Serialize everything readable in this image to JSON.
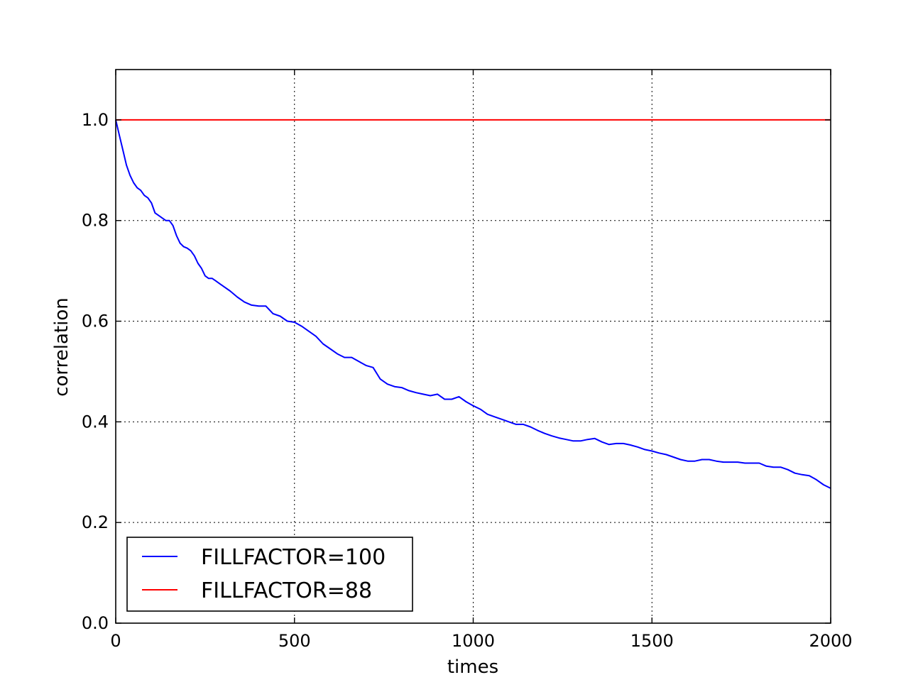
{
  "chart_data": {
    "type": "line",
    "title": "",
    "xlabel": "times",
    "ylabel": "correlation",
    "xlim": [
      0,
      2000
    ],
    "ylim": [
      0.0,
      1.1
    ],
    "xticks": [
      0,
      500,
      1000,
      1500,
      2000
    ],
    "xtick_labels": [
      "0",
      "500",
      "1000",
      "1500",
      "2000"
    ],
    "yticks": [
      0.0,
      0.2,
      0.4,
      0.6,
      0.8,
      1.0
    ],
    "ytick_labels": [
      "0.0",
      "0.2",
      "0.4",
      "0.6",
      "0.8",
      "1.0"
    ],
    "grid": true,
    "legend_position": "lower-left",
    "series": [
      {
        "name": "FILLFACTOR=100",
        "color": "#0000ff",
        "x": [
          0,
          10,
          20,
          30,
          40,
          50,
          60,
          70,
          80,
          90,
          100,
          110,
          120,
          130,
          140,
          150,
          160,
          170,
          180,
          190,
          200,
          210,
          220,
          230,
          240,
          250,
          260,
          270,
          280,
          290,
          300,
          320,
          340,
          360,
          380,
          400,
          420,
          440,
          460,
          480,
          500,
          520,
          540,
          560,
          580,
          600,
          620,
          640,
          660,
          680,
          700,
          720,
          740,
          760,
          780,
          800,
          820,
          840,
          860,
          880,
          900,
          920,
          940,
          960,
          980,
          1000,
          1020,
          1040,
          1060,
          1080,
          1100,
          1120,
          1140,
          1160,
          1180,
          1200,
          1220,
          1240,
          1260,
          1280,
          1300,
          1320,
          1340,
          1360,
          1380,
          1400,
          1420,
          1440,
          1460,
          1480,
          1500,
          1520,
          1540,
          1560,
          1580,
          1600,
          1620,
          1640,
          1660,
          1680,
          1700,
          1720,
          1740,
          1760,
          1780,
          1800,
          1820,
          1840,
          1860,
          1880,
          1900,
          1920,
          1940,
          1960,
          1980,
          2000
        ],
        "y": [
          1.0,
          0.97,
          0.94,
          0.91,
          0.89,
          0.875,
          0.865,
          0.86,
          0.85,
          0.845,
          0.835,
          0.815,
          0.81,
          0.805,
          0.8,
          0.8,
          0.79,
          0.77,
          0.755,
          0.748,
          0.745,
          0.74,
          0.73,
          0.715,
          0.705,
          0.69,
          0.685,
          0.685,
          0.68,
          0.675,
          0.67,
          0.66,
          0.648,
          0.638,
          0.632,
          0.63,
          0.63,
          0.615,
          0.61,
          0.6,
          0.598,
          0.59,
          0.58,
          0.57,
          0.555,
          0.545,
          0.535,
          0.528,
          0.528,
          0.52,
          0.512,
          0.508,
          0.485,
          0.475,
          0.47,
          0.468,
          0.462,
          0.458,
          0.455,
          0.452,
          0.455,
          0.445,
          0.445,
          0.45,
          0.44,
          0.432,
          0.425,
          0.415,
          0.41,
          0.405,
          0.4,
          0.395,
          0.395,
          0.39,
          0.383,
          0.377,
          0.372,
          0.368,
          0.365,
          0.362,
          0.362,
          0.365,
          0.367,
          0.36,
          0.355,
          0.357,
          0.357,
          0.354,
          0.35,
          0.345,
          0.342,
          0.338,
          0.335,
          0.33,
          0.325,
          0.322,
          0.322,
          0.325,
          0.325,
          0.322,
          0.32,
          0.32,
          0.32,
          0.318,
          0.318,
          0.318,
          0.312,
          0.31,
          0.31,
          0.305,
          0.298,
          0.295,
          0.293,
          0.285,
          0.275,
          0.268
        ]
      },
      {
        "name": "FILLFACTOR=88",
        "color": "#ff0000",
        "x": [
          0,
          2000
        ],
        "y": [
          1.0,
          1.0
        ]
      }
    ]
  }
}
